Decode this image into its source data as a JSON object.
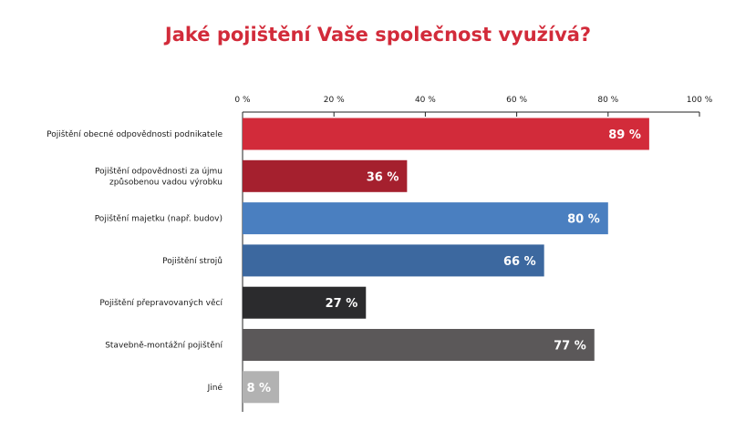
{
  "chart_data": {
    "type": "bar",
    "orientation": "horizontal",
    "title": "Jaké pojištění Vaše společnost využívá?",
    "xlim": [
      0,
      100
    ],
    "x_ticks": [
      0,
      20,
      40,
      60,
      80,
      100
    ],
    "x_tick_labels": [
      "0 %",
      "20 %",
      "40 %",
      "60 %",
      "80 %",
      "100 %"
    ],
    "x_axis_position": "top",
    "grid": false,
    "legend": "none",
    "categories": [
      [
        "Pojištění obecné odpovědnosti podnikatele"
      ],
      [
        "Pojištění odpovědnosti za újmu",
        "způsobenou vadou výrobku"
      ],
      [
        "Pojištění majetku (např. budov)"
      ],
      [
        "Pojištění strojů"
      ],
      [
        "Pojištění přepravovaných věcí"
      ],
      [
        "Stavebně-montážní pojištění"
      ],
      [
        "Jiné"
      ]
    ],
    "values": [
      89,
      36,
      80,
      66,
      27,
      77,
      8
    ],
    "value_labels": [
      "89 %",
      "36 %",
      "80 %",
      "66 %",
      "27 %",
      "77 %",
      "8 %"
    ],
    "colors": [
      "#d22b3a",
      "#a5202e",
      "#4a7fc0",
      "#3c689f",
      "#2b2b2d",
      "#5b5859",
      "#b2b2b2"
    ]
  }
}
